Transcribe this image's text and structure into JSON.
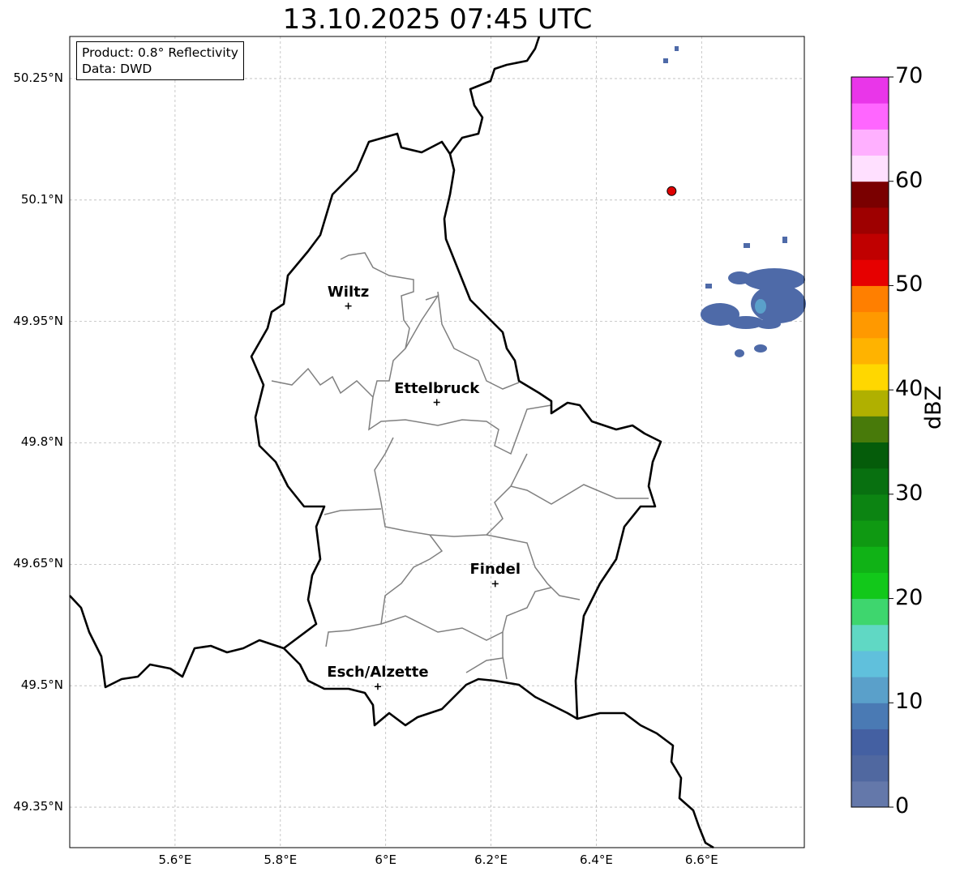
{
  "title": "13.10.2025 07:45 UTC",
  "info_box": {
    "product": "Product: 0.8° Reflectivity",
    "data": "Data: DWD"
  },
  "map": {
    "lon_range": [
      5.4,
      6.795
    ],
    "lat_range": [
      49.3,
      50.302
    ],
    "x_ticks": [
      "5.6°E",
      "5.8°E",
      "6°E",
      "6.2°E",
      "6.4°E",
      "6.6°E"
    ],
    "x_tick_values": [
      5.6,
      5.8,
      6.0,
      6.2,
      6.4,
      6.6
    ],
    "y_ticks": [
      "50.25°N",
      "50.1°N",
      "49.95°N",
      "49.8°N",
      "49.65°N",
      "49.5°N",
      "49.35°N"
    ],
    "y_tick_values": [
      50.25,
      50.1,
      49.95,
      49.8,
      49.65,
      49.5,
      49.35
    ],
    "cities": [
      {
        "name": "Wiltz",
        "lon": 5.929,
        "lat": 49.969
      },
      {
        "name": "Ettelbruck",
        "lon": 6.097,
        "lat": 49.85
      },
      {
        "name": "Findel",
        "lon": 6.208,
        "lat": 49.626
      },
      {
        "name": "Esch/Alzette",
        "lon": 5.985,
        "lat": 49.499
      }
    ],
    "radar_site": {
      "lon": 6.543,
      "lat": 50.111,
      "color": "#e00000"
    }
  },
  "colorbar": {
    "label": "dBZ",
    "ticks": [
      "0",
      "10",
      "20",
      "30",
      "40",
      "50",
      "60",
      "70"
    ],
    "min": 0,
    "max": 70,
    "step": 2.5,
    "colors_low_to_high": [
      "#6478aa",
      "#5068a0",
      "#4460a2",
      "#4a7ab4",
      "#5aa0ca",
      "#60c0dc",
      "#60d8c4",
      "#3ed66e",
      "#12c81a",
      "#10b216",
      "#0f9912",
      "#0c8412",
      "#087010",
      "#055c0a",
      "#487a0a",
      "#b0b000",
      "#ffd700",
      "#ffb300",
      "#ff9900",
      "#ff7f00",
      "#e60000",
      "#c00000",
      "#9e0000",
      "#7a0000",
      "#ffe0ff",
      "#ffb0ff",
      "#ff66ff",
      "#e936e9"
    ]
  }
}
